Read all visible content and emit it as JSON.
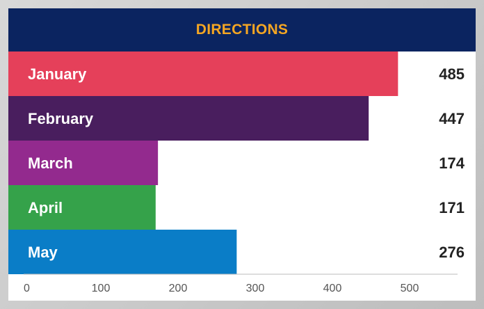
{
  "chart_data": {
    "type": "bar",
    "orientation": "horizontal",
    "title": "DIRECTIONS",
    "categories": [
      "January",
      "February",
      "March",
      "April",
      "May"
    ],
    "values": [
      485,
      447,
      174,
      171,
      276
    ],
    "colors": [
      "#e5405a",
      "#491e5e",
      "#932a8e",
      "#35a24a",
      "#0a7dc7"
    ],
    "xlim": [
      0,
      500
    ],
    "xticks": [
      0,
      100,
      200,
      300,
      400,
      500
    ],
    "grid": false,
    "legend": "none",
    "xlabel": "",
    "ylabel": ""
  },
  "colors": {
    "header_bg": "#0b2460",
    "title_text": "#f5a623",
    "axis_line": "#bbbbbb"
  }
}
